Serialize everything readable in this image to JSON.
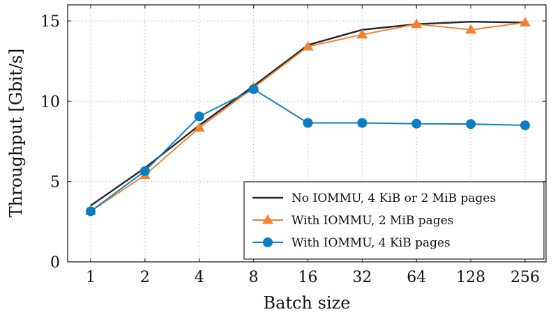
{
  "chart_data": {
    "type": "line",
    "xlabel": "Batch size",
    "ylabel": "Throughput [Gbit/s]",
    "categories": [
      "1",
      "2",
      "4",
      "8",
      "16",
      "32",
      "64",
      "128",
      "256"
    ],
    "ylim": [
      0,
      16
    ],
    "yticks": [
      0,
      5,
      10,
      15
    ],
    "grid": true,
    "legend_position": "bottom-right",
    "series": [
      {
        "name": "No IOMMU, 4 KiB or 2 MiB pages",
        "color": "#262626",
        "marker": "none",
        "values": [
          3.5,
          5.85,
          8.5,
          10.95,
          13.5,
          14.45,
          14.8,
          14.95,
          14.9
        ]
      },
      {
        "name": "With IOMMU, 2 MiB pages",
        "color": "#f28130",
        "marker": "triangle",
        "values": [
          3.15,
          5.4,
          8.35,
          10.85,
          13.4,
          14.15,
          14.8,
          14.45,
          14.9
        ]
      },
      {
        "name": "With IOMMU, 4 KiB pages",
        "color": "#0d7dc2",
        "marker": "circle",
        "values": [
          3.15,
          5.65,
          9.05,
          10.75,
          8.65,
          8.65,
          8.6,
          8.58,
          8.5
        ]
      }
    ]
  }
}
